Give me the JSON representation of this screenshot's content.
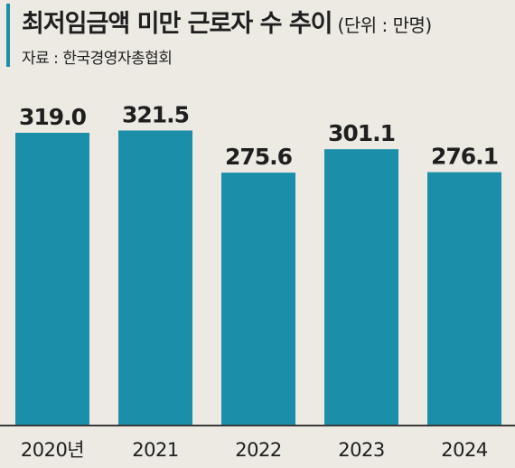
{
  "header": {
    "title": "최저임금액 미만 근로자 수 추이",
    "unit": "(단위 : 만명)",
    "source": "자료 : 한국경영자총협회"
  },
  "colors": {
    "bar": "#1b8fa9",
    "background": "#ede9e3"
  },
  "chart_data": {
    "type": "bar",
    "title": "최저임금액 미만 근로자 수 추이",
    "unit": "(단위 : 만명)",
    "categories": [
      "2020년",
      "2021",
      "2022",
      "2023",
      "2024"
    ],
    "values": [
      319.0,
      321.5,
      275.6,
      301.1,
      276.1
    ],
    "value_labels": [
      "319.0",
      "321.5",
      "275.6",
      "301.1",
      "276.1"
    ],
    "grid": false,
    "legend": "none"
  }
}
